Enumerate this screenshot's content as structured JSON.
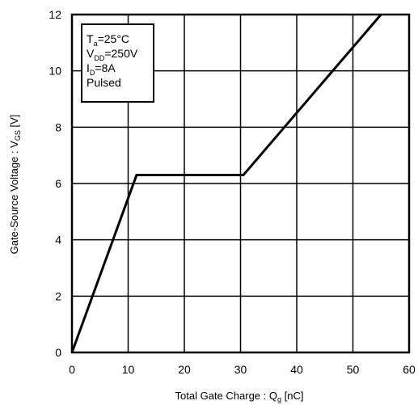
{
  "chart_data": {
    "type": "line",
    "xlabel": {
      "main": "Total Gate Charge : Q",
      "sub": "g",
      "unit": " [nC]"
    },
    "ylabel": {
      "main": "Gate-Source Voltage : V",
      "sub": "GS",
      "unit": " [V]"
    },
    "xlim": [
      0,
      60
    ],
    "ylim": [
      0,
      12
    ],
    "x_ticks": [
      0,
      10,
      20,
      30,
      40,
      50,
      60
    ],
    "y_ticks": [
      0,
      2,
      4,
      6,
      8,
      10,
      12
    ],
    "grid": true,
    "legend_position": "top-left",
    "conditions": [
      {
        "main": "T",
        "sub": "a",
        "rest": "=25°C"
      },
      {
        "main": "V",
        "sub": "DD",
        "rest": "=250V"
      },
      {
        "main": "I",
        "sub": "D",
        "rest": "=8A"
      },
      {
        "main": "Pulsed",
        "sub": "",
        "rest": ""
      }
    ],
    "series": [
      {
        "x": [
          0,
          11.5,
          30.5,
          55
        ],
        "y": [
          0,
          6.3,
          6.3,
          12
        ]
      }
    ],
    "line_color": "#000000"
  }
}
